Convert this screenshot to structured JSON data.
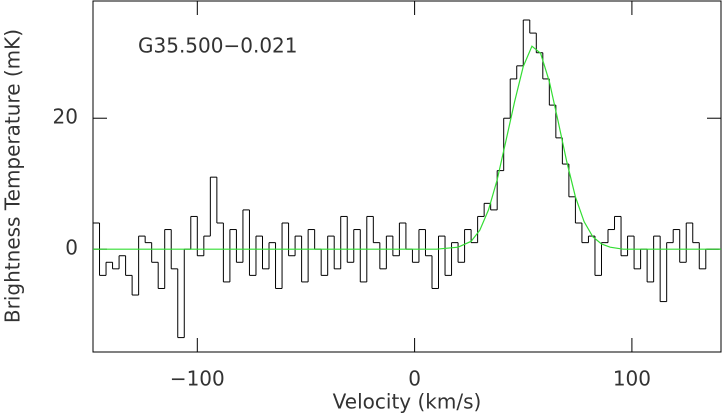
{
  "chart_data": {
    "type": "step",
    "annotation": "G35.500−0.021",
    "xlabel": "Velocity (km/s)",
    "ylabel": "Brightness Temperature (mK)",
    "xlim": [
      -148,
      141
    ],
    "ylim": [
      -15.7,
      37.9
    ],
    "xticks": [
      {
        "value": -100,
        "label": "−100"
      },
      0,
      100
    ],
    "yticks": [
      0,
      20
    ],
    "series": [
      {
        "type": "step",
        "color": "#000000",
        "x": [
          -146.5,
          -143.5,
          -140.5,
          -137.5,
          -134.5,
          -131.5,
          -128.5,
          -125.5,
          -122.5,
          -119.5,
          -116.5,
          -113.5,
          -110.5,
          -107.5,
          -104.5,
          -101.5,
          -98.5,
          -95.5,
          -92.5,
          -89.5,
          -86.5,
          -83.5,
          -80.5,
          -77.5,
          -74.5,
          -71.5,
          -68.5,
          -65.5,
          -62.5,
          -59.5,
          -56.5,
          -53.5,
          -50.5,
          -47.5,
          -44.5,
          -41.5,
          -38.5,
          -35.5,
          -32.5,
          -29.5,
          -26.5,
          -23.5,
          -20.5,
          -17.5,
          -14.5,
          -11.5,
          -8.5,
          -5.5,
          -2.5,
          0.5,
          3.5,
          6.5,
          9.5,
          12.5,
          15.5,
          18.5,
          21.5,
          24.5,
          27.5,
          30.5,
          33.5,
          36.5,
          39.5,
          42.5,
          45.5,
          48.5,
          51.5,
          54.5,
          57.5,
          60.5,
          63.5,
          66.5,
          69.5,
          72.5,
          75.5,
          78.5,
          81.5,
          84.5,
          87.5,
          90.5,
          93.5,
          96.5,
          99.5,
          102.5,
          105.5,
          108.5,
          111.5,
          114.5,
          117.5,
          120.5,
          123.5,
          126.5,
          129.5,
          132.5,
          135.5,
          138.5
        ],
        "values": [
          4,
          -4,
          -2,
          -3,
          -1,
          -4,
          -7,
          2,
          1,
          -2,
          -6,
          3,
          -3,
          -13.5,
          0,
          5,
          -1,
          2,
          11,
          4,
          -5,
          3,
          -2,
          6,
          -4,
          2,
          -3,
          1,
          -6,
          4,
          -1,
          2,
          -5,
          3,
          0,
          -4,
          2,
          -3,
          5,
          -2,
          3,
          -5,
          5,
          1,
          -3,
          2,
          -1,
          4,
          0,
          -2,
          3,
          -1,
          -6,
          2,
          -4,
          1,
          -2,
          3,
          1,
          5,
          7,
          6,
          12,
          20,
          26,
          28,
          35,
          33,
          30,
          26,
          22,
          17,
          13,
          8,
          4,
          1,
          2,
          -4,
          1,
          3,
          5,
          -1,
          2,
          -3,
          0,
          -5,
          2,
          -8,
          1,
          3,
          -2,
          4,
          1,
          -3,
          0,
          0
        ]
      },
      {
        "type": "line",
        "color": "#33dd33",
        "x": [
          -148,
          10,
          20,
          26,
          30,
          34,
          38,
          42,
          46,
          50,
          54,
          58,
          62,
          66,
          70,
          74,
          78,
          82,
          86,
          90,
          96,
          141
        ],
        "values": [
          0,
          0,
          0.3,
          1.2,
          2.9,
          6.0,
          10.6,
          16.5,
          22.5,
          27.9,
          31,
          29.9,
          25.6,
          19.6,
          13.4,
          8.0,
          4.2,
          1.9,
          0.8,
          0.3,
          0,
          0
        ]
      }
    ]
  }
}
